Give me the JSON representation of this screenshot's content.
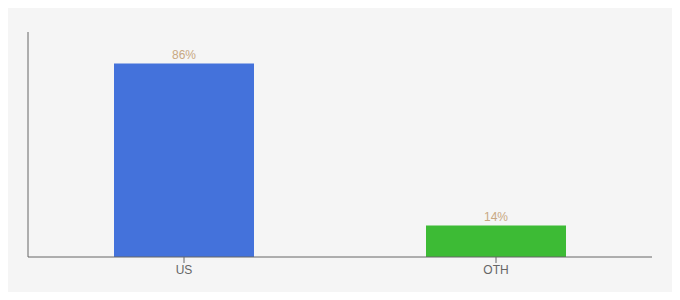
{
  "chart_data": {
    "type": "bar",
    "categories": [
      "US",
      "OTH"
    ],
    "values": [
      86,
      14
    ],
    "value_labels": [
      "86%",
      "14%"
    ],
    "colors": [
      "#4472db",
      "#3dbb35"
    ],
    "data_labels": true,
    "ylim": [
      0,
      100
    ],
    "tick_labels": "x",
    "grid": false
  }
}
